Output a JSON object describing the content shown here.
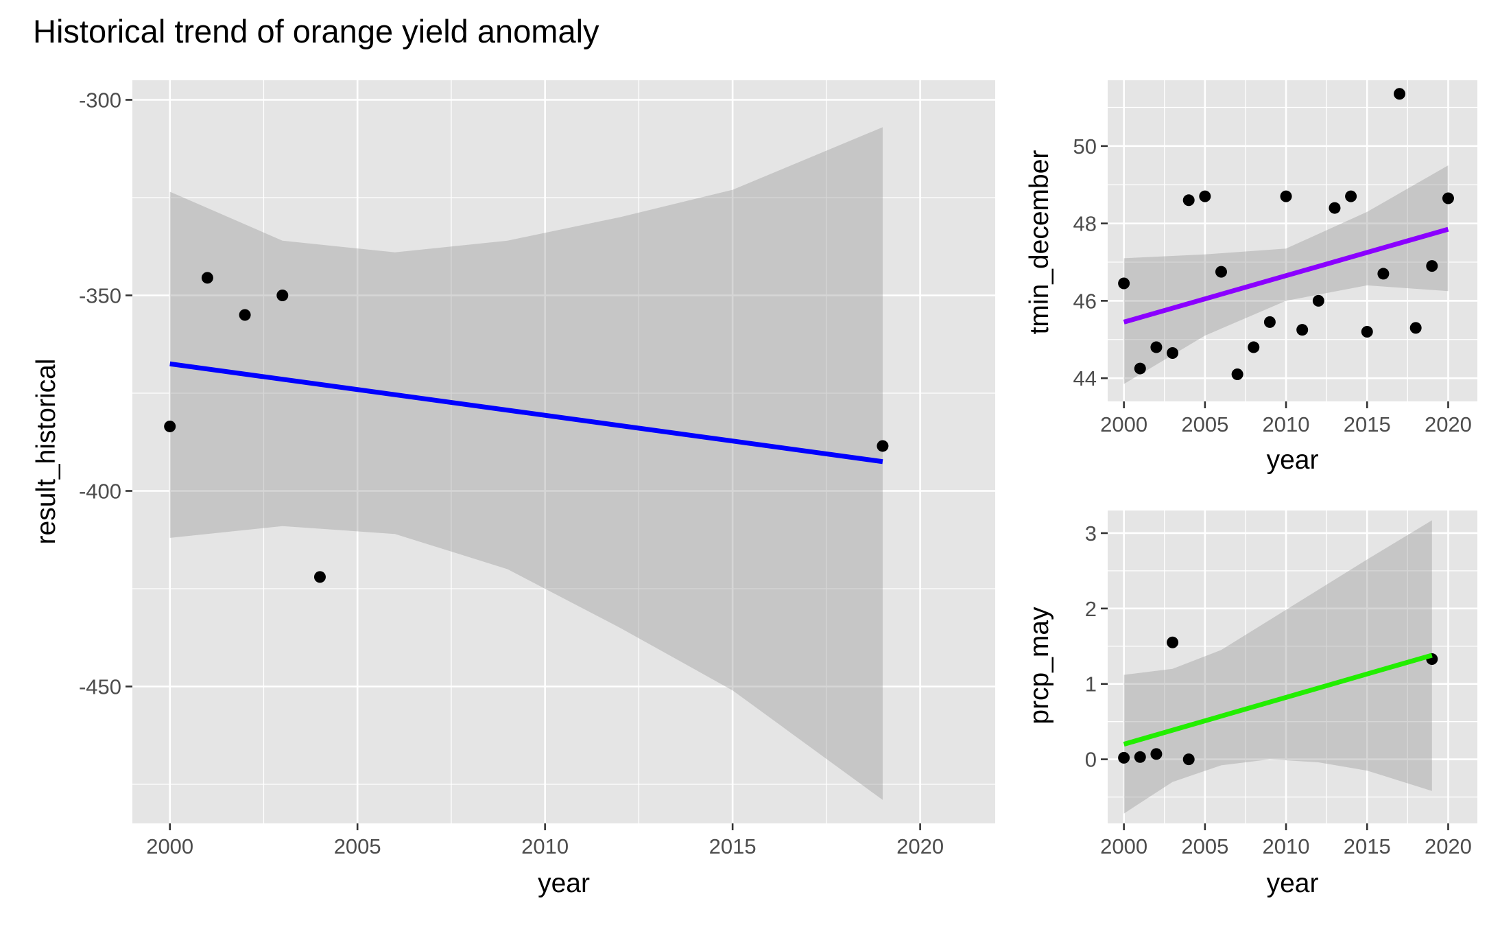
{
  "title": "Historical trend of orange yield anomaly",
  "chart_data": [
    {
      "type": "scatter",
      "xlabel": "year",
      "ylabel": "result_historical",
      "xlim": [
        1999,
        2022
      ],
      "ylim": [
        -485,
        -295
      ],
      "x_ticks": [
        2000,
        2005,
        2010,
        2015,
        2020
      ],
      "y_ticks": [
        -450,
        -400,
        -350,
        -300
      ],
      "grid": true,
      "points": [
        {
          "x": 2000,
          "y": -383.5
        },
        {
          "x": 2001,
          "y": -345.5
        },
        {
          "x": 2002,
          "y": -355
        },
        {
          "x": 2003,
          "y": -350
        },
        {
          "x": 2004,
          "y": -422
        },
        {
          "x": 2019,
          "y": -388.5
        }
      ],
      "trend": {
        "color": "#0000ff",
        "start": {
          "x": 2000,
          "y": -367.5
        },
        "end": {
          "x": 2019,
          "y": -392.5
        }
      },
      "confidence_band": [
        {
          "x": 2000,
          "lower": -412,
          "upper": -323.5
        },
        {
          "x": 2003,
          "lower": -409,
          "upper": -336
        },
        {
          "x": 2006,
          "lower": -411,
          "upper": -339
        },
        {
          "x": 2009,
          "lower": -420,
          "upper": -336
        },
        {
          "x": 2012,
          "lower": -435,
          "upper": -330
        },
        {
          "x": 2015,
          "lower": -451,
          "upper": -323
        },
        {
          "x": 2019,
          "lower": -479,
          "upper": -307
        }
      ]
    },
    {
      "type": "scatter",
      "xlabel": "year",
      "ylabel": "tmin_december",
      "xlim": [
        1999,
        2021.8
      ],
      "ylim": [
        43.4,
        51.7
      ],
      "x_ticks": [
        2000,
        2005,
        2010,
        2015,
        2020
      ],
      "y_ticks": [
        44,
        46,
        48,
        50
      ],
      "grid": true,
      "points": [
        {
          "x": 2000,
          "y": 46.45
        },
        {
          "x": 2001,
          "y": 44.25
        },
        {
          "x": 2002,
          "y": 44.8
        },
        {
          "x": 2003,
          "y": 44.65
        },
        {
          "x": 2004,
          "y": 48.6
        },
        {
          "x": 2005,
          "y": 48.7
        },
        {
          "x": 2006,
          "y": 46.75
        },
        {
          "x": 2007,
          "y": 44.1
        },
        {
          "x": 2008,
          "y": 44.8
        },
        {
          "x": 2009,
          "y": 45.45
        },
        {
          "x": 2010,
          "y": 48.7
        },
        {
          "x": 2011,
          "y": 45.25
        },
        {
          "x": 2012,
          "y": 46.0
        },
        {
          "x": 2013,
          "y": 48.4
        },
        {
          "x": 2014,
          "y": 48.7
        },
        {
          "x": 2015,
          "y": 45.2
        },
        {
          "x": 2016,
          "y": 46.7
        },
        {
          "x": 2017,
          "y": 51.35
        },
        {
          "x": 2018,
          "y": 45.3
        },
        {
          "x": 2019,
          "y": 46.9
        },
        {
          "x": 2020,
          "y": 48.65
        }
      ],
      "trend": {
        "color": "#8b00ff",
        "start": {
          "x": 2000,
          "y": 45.45
        },
        "end": {
          "x": 2020,
          "y": 47.85
        }
      },
      "confidence_band": [
        {
          "x": 2000,
          "lower": 43.85,
          "upper": 47.1
        },
        {
          "x": 2005,
          "lower": 45.1,
          "upper": 47.2
        },
        {
          "x": 2010,
          "lower": 46.0,
          "upper": 47.35
        },
        {
          "x": 2015,
          "lower": 46.4,
          "upper": 48.3
        },
        {
          "x": 2020,
          "lower": 46.25,
          "upper": 49.5
        }
      ]
    },
    {
      "type": "scatter",
      "xlabel": "year",
      "ylabel": "prcp_may",
      "xlim": [
        1999,
        2021.8
      ],
      "ylim": [
        -0.85,
        3.3
      ],
      "x_ticks": [
        2000,
        2005,
        2010,
        2015,
        2020
      ],
      "y_ticks": [
        0,
        1,
        2,
        3
      ],
      "grid": true,
      "points": [
        {
          "x": 2000,
          "y": 0.02
        },
        {
          "x": 2001,
          "y": 0.03
        },
        {
          "x": 2002,
          "y": 0.07
        },
        {
          "x": 2003,
          "y": 1.55
        },
        {
          "x": 2004,
          "y": 0.0
        },
        {
          "x": 2019,
          "y": 1.33
        }
      ],
      "trend": {
        "color": "#22ee00",
        "start": {
          "x": 2000,
          "y": 0.2
        },
        "end": {
          "x": 2019,
          "y": 1.38
        }
      },
      "confidence_band": [
        {
          "x": 2000,
          "lower": -0.72,
          "upper": 1.12
        },
        {
          "x": 2003,
          "lower": -0.3,
          "upper": 1.2
        },
        {
          "x": 2006,
          "lower": -0.08,
          "upper": 1.45
        },
        {
          "x": 2009,
          "lower": 0.0,
          "upper": 1.85
        },
        {
          "x": 2012,
          "lower": -0.04,
          "upper": 2.25
        },
        {
          "x": 2015,
          "lower": -0.15,
          "upper": 2.65
        },
        {
          "x": 2019,
          "lower": -0.42,
          "upper": 3.17
        }
      ]
    }
  ]
}
